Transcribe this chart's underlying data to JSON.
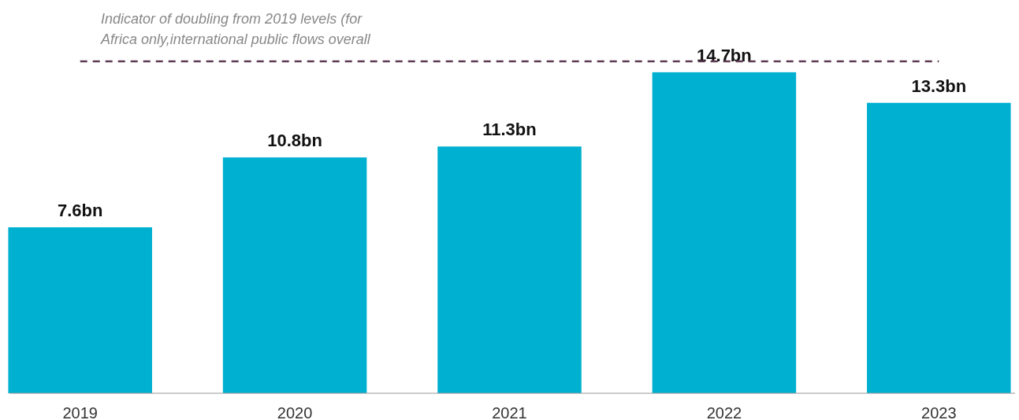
{
  "chart_data": {
    "type": "bar",
    "categories": [
      "2019",
      "2020",
      "2021",
      "2022",
      "2023"
    ],
    "values": [
      7.6,
      10.8,
      11.3,
      14.7,
      13.3
    ],
    "value_labels": [
      "7.6bn",
      "10.8bn",
      "11.3bn",
      "14.7bn",
      "13.3bn"
    ],
    "color": "#00b0d0",
    "tick_labels": "x",
    "ref_lines": [
      {
        "axis": "y",
        "value": 15.2,
        "label": "Indicator of doubling from 2019 levels (for Africa only,international public flows overall",
        "color": "#5c3a52",
        "line_style": "dashed"
      }
    ]
  }
}
